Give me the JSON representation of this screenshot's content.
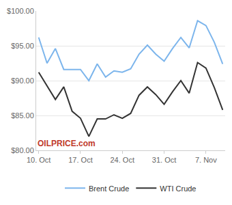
{
  "chart_data": {
    "type": "line",
    "categories": [
      "10. Oct",
      null,
      null,
      null,
      null,
      "17. Oct",
      null,
      null,
      null,
      null,
      "24. Oct",
      null,
      null,
      null,
      null,
      "31. Oct",
      null,
      null,
      null,
      null,
      "7. Nov",
      null,
      null
    ],
    "series": [
      {
        "name": "Brent Crude",
        "color": "#7cb5ec",
        "values": [
          96.2,
          92.5,
          94.6,
          91.6,
          91.6,
          91.6,
          90.0,
          92.4,
          90.5,
          91.4,
          91.2,
          91.7,
          93.8,
          95.1,
          93.8,
          92.8,
          94.6,
          96.2,
          94.7,
          98.6,
          97.9,
          95.5,
          92.4
        ]
      },
      {
        "name": "WTI Crude",
        "color": "#333333",
        "values": [
          91.2,
          89.3,
          87.3,
          89.1,
          85.6,
          84.6,
          82.0,
          84.5,
          84.5,
          85.1,
          84.6,
          85.3,
          87.9,
          89.1,
          88.0,
          86.6,
          88.4,
          90.0,
          88.2,
          92.6,
          91.8,
          89.0,
          85.8
        ]
      }
    ],
    "ylim": [
      80,
      100
    ],
    "yticks": [
      {
        "value": 80,
        "label": "$80.00"
      },
      {
        "value": 85,
        "label": "$85.00"
      },
      {
        "value": 90,
        "label": "$90.00"
      },
      {
        "value": 95,
        "label": "$95.00"
      },
      {
        "value": 100,
        "label": "$100.00"
      }
    ],
    "grid": true,
    "legend": "bottom",
    "annotations": [
      {
        "text": "OILPRICE.com"
      }
    ]
  }
}
